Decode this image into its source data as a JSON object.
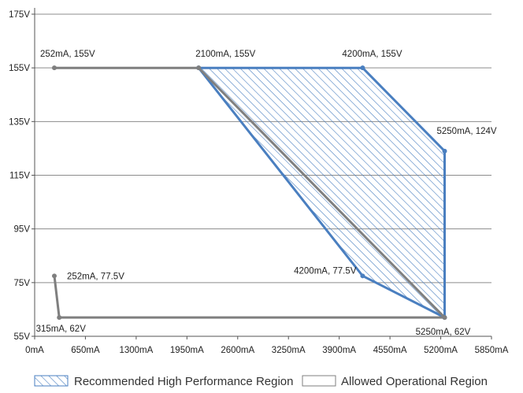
{
  "chart_data": {
    "type": "area",
    "xlim": [
      0,
      5850
    ],
    "ylim": [
      55,
      175
    ],
    "x_ticks": [
      "0mA",
      "650mA",
      "1300mA",
      "1950mA",
      "2600mA",
      "3250mA",
      "3900mA",
      "4550mA",
      "5200mA",
      "5850mA"
    ],
    "y_ticks": [
      "55V",
      "75V",
      "95V",
      "115V",
      "135V",
      "155V",
      "175V"
    ],
    "grid": true,
    "legend_position": "bottom",
    "series": [
      {
        "name": "Recommended High Performance Region",
        "style": "hatched-fill",
        "color": "#4a7fc0",
        "points": [
          {
            "x": 2100,
            "y": 155
          },
          {
            "x": 4200,
            "y": 155
          },
          {
            "x": 5250,
            "y": 124
          },
          {
            "x": 5250,
            "y": 62
          },
          {
            "x": 4200,
            "y": 77.5
          }
        ]
      },
      {
        "name": "Allowed Operational Region",
        "style": "outline",
        "color": "#7f7f7f",
        "points": [
          {
            "x": 252,
            "y": 155
          },
          {
            "x": 2100,
            "y": 155
          },
          {
            "x": 5250,
            "y": 62
          },
          {
            "x": 315,
            "y": 62
          },
          {
            "x": 252,
            "y": 77.5
          }
        ]
      }
    ],
    "annotations": [
      {
        "text": "252mA, 155V",
        "x": 252,
        "y": 155
      },
      {
        "text": "2100mA, 155V",
        "x": 2100,
        "y": 155
      },
      {
        "text": "4200mA, 155V",
        "x": 4200,
        "y": 155
      },
      {
        "text": "5250mA, 124V",
        "x": 5250,
        "y": 124
      },
      {
        "text": "252mA, 77.5V",
        "x": 252,
        "y": 77.5
      },
      {
        "text": "4200mA, 77.5V",
        "x": 4200,
        "y": 77.5
      },
      {
        "text": "315mA, 62V",
        "x": 315,
        "y": 62
      },
      {
        "text": "5250mA, 62V",
        "x": 5250,
        "y": 62
      }
    ]
  }
}
